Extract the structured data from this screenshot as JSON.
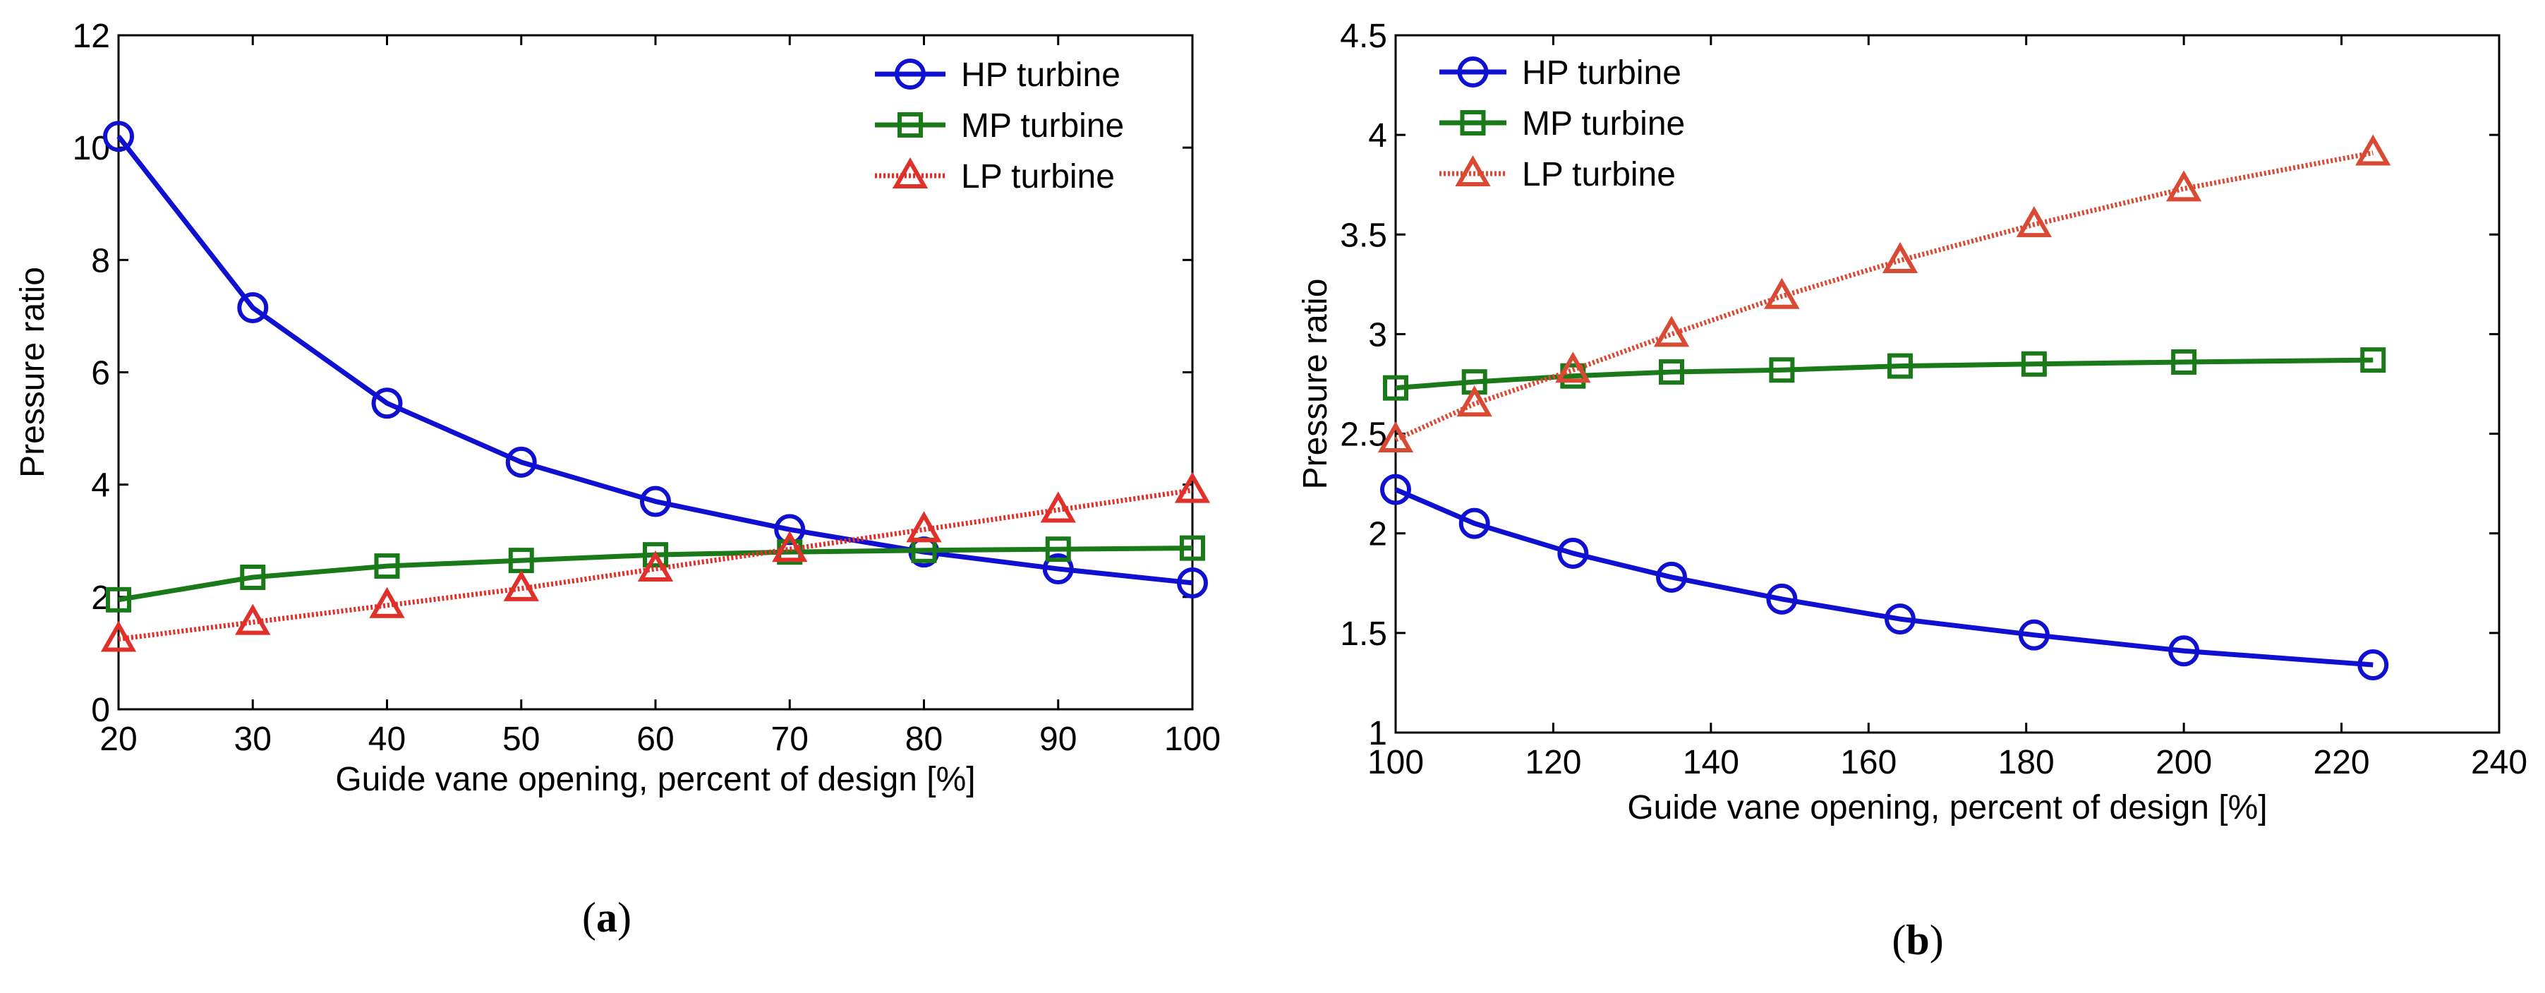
{
  "chart_data": [
    {
      "type": "line",
      "caption": "a",
      "xlabel": "Guide vane opening, percent of design [%]",
      "ylabel": "Pressure ratio",
      "xlim": [
        20,
        100
      ],
      "ylim": [
        0,
        12
      ],
      "xticks": [
        20,
        30,
        40,
        50,
        60,
        70,
        80,
        90,
        100
      ],
      "yticks": [
        0,
        2,
        4,
        6,
        8,
        10,
        12
      ],
      "ytick_labels": [
        "0",
        "2",
        "4",
        "6",
        "8",
        "10",
        "12"
      ],
      "legend_position": "top-right",
      "x": [
        20,
        30,
        40,
        50,
        60,
        70,
        80,
        90,
        100
      ],
      "series": [
        {
          "name": "HP turbine",
          "color": "#1010d0",
          "marker": "circle",
          "values": [
            10.2,
            7.15,
            5.45,
            4.4,
            3.7,
            3.2,
            2.8,
            2.5,
            2.25
          ]
        },
        {
          "name": "MP turbine",
          "color": "#1a7a1a",
          "marker": "square",
          "values": [
            1.95,
            2.35,
            2.55,
            2.65,
            2.75,
            2.8,
            2.83,
            2.85,
            2.87
          ]
        },
        {
          "name": "LP turbine",
          "color": "#e0302a",
          "marker": "triangle",
          "values": [
            1.25,
            1.55,
            1.85,
            2.15,
            2.5,
            2.85,
            3.2,
            3.55,
            3.9
          ]
        }
      ]
    },
    {
      "type": "line",
      "caption": "b",
      "xlabel": "Guide vane opening, percent of design [%]",
      "ylabel": "Pressure ratio",
      "xlim": [
        100,
        240
      ],
      "ylim": [
        1,
        4.5
      ],
      "xticks": [
        100,
        120,
        140,
        160,
        180,
        200,
        220,
        240
      ],
      "yticks": [
        1,
        1.5,
        2,
        2.5,
        3,
        3.5,
        4,
        4.5
      ],
      "ytick_labels": [
        "1",
        "1.5",
        "2",
        "2.5",
        "3",
        "3.5",
        "4",
        "4.5"
      ],
      "legend_position": "top-left",
      "x": [
        100,
        110,
        122.5,
        135,
        149,
        164,
        181,
        200,
        224
      ],
      "series": [
        {
          "name": "HP turbine",
          "color": "#1010d0",
          "marker": "circle",
          "values": [
            2.22,
            2.05,
            1.9,
            1.78,
            1.67,
            1.57,
            1.49,
            1.41,
            1.34
          ]
        },
        {
          "name": "MP turbine",
          "color": "#1a7a1a",
          "marker": "square",
          "values": [
            2.73,
            2.76,
            2.79,
            2.81,
            2.82,
            2.84,
            2.85,
            2.86,
            2.87
          ]
        },
        {
          "name": "LP turbine",
          "color": "#d84a34",
          "marker": "triangle",
          "values": [
            2.47,
            2.65,
            2.82,
            3.0,
            3.19,
            3.37,
            3.55,
            3.73,
            3.91
          ]
        }
      ]
    }
  ]
}
